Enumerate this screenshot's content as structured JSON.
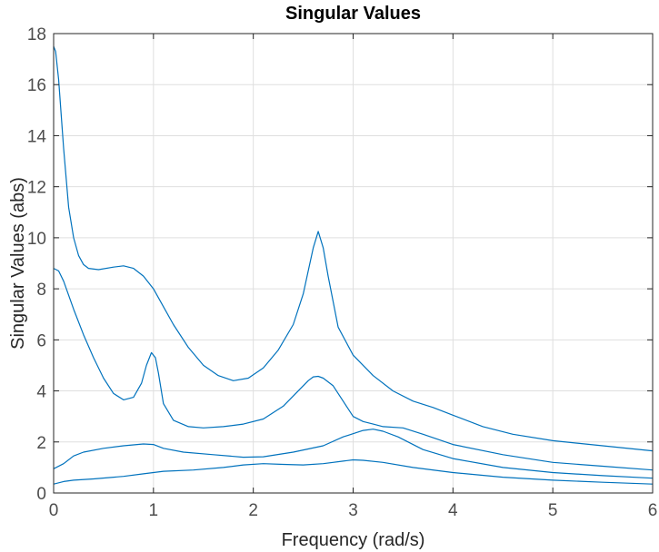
{
  "chart_data": {
    "type": "line",
    "title": "Singular Values",
    "xlabel": "Frequency (rad/s)",
    "ylabel": "Singular Values (abs)",
    "xlim": [
      0,
      6
    ],
    "ylim": [
      0,
      18
    ],
    "xticks": [
      "0",
      "1",
      "2",
      "3",
      "4",
      "5",
      "6"
    ],
    "yticks": [
      "0",
      "2",
      "4",
      "6",
      "8",
      "10",
      "12",
      "14",
      "16",
      "18"
    ],
    "grid": true,
    "line_color": "#0072BD",
    "series": [
      {
        "x": [
          0,
          0.02,
          0.05,
          0.1,
          0.15,
          0.2,
          0.25,
          0.3,
          0.35,
          0.45,
          0.6,
          0.7,
          0.8,
          0.9,
          1.0,
          1.1,
          1.2,
          1.35,
          1.5,
          1.65,
          1.8,
          1.95,
          2.1,
          2.25,
          2.4,
          2.5,
          2.55,
          2.6,
          2.65,
          2.7,
          2.75,
          2.85,
          3.0,
          3.2,
          3.4,
          3.6,
          3.8,
          4.0,
          4.3,
          4.6,
          5.0,
          5.5,
          6.0
        ],
        "y": [
          17.5,
          17.3,
          16.2,
          13.5,
          11.2,
          10.0,
          9.3,
          8.95,
          8.8,
          8.75,
          8.85,
          8.9,
          8.8,
          8.5,
          8.0,
          7.3,
          6.6,
          5.7,
          5.0,
          4.6,
          4.4,
          4.5,
          4.9,
          5.6,
          6.6,
          7.8,
          8.7,
          9.6,
          10.25,
          9.6,
          8.5,
          6.5,
          5.4,
          4.6,
          4.0,
          3.6,
          3.35,
          3.05,
          2.6,
          2.3,
          2.05,
          1.85,
          1.65
        ]
      },
      {
        "x": [
          0,
          0.05,
          0.1,
          0.2,
          0.3,
          0.4,
          0.5,
          0.6,
          0.7,
          0.8,
          0.88,
          0.93,
          0.98,
          1.02,
          1.05,
          1.1,
          1.2,
          1.35,
          1.5,
          1.7,
          1.9,
          2.1,
          2.3,
          2.45,
          2.55,
          2.6,
          2.65,
          2.7,
          2.8,
          2.9,
          3.0,
          3.1,
          3.2,
          3.3,
          3.5,
          3.7,
          4.0,
          4.5,
          5.0,
          5.5,
          6.0
        ],
        "y": [
          8.8,
          8.7,
          8.3,
          7.2,
          6.2,
          5.3,
          4.5,
          3.9,
          3.65,
          3.75,
          4.3,
          5.0,
          5.5,
          5.3,
          4.7,
          3.5,
          2.85,
          2.6,
          2.55,
          2.6,
          2.7,
          2.9,
          3.4,
          4.0,
          4.4,
          4.55,
          4.57,
          4.5,
          4.2,
          3.6,
          3.0,
          2.8,
          2.7,
          2.6,
          2.55,
          2.3,
          1.9,
          1.5,
          1.2,
          1.05,
          0.9
        ]
      },
      {
        "x": [
          0,
          0.1,
          0.2,
          0.3,
          0.5,
          0.7,
          0.9,
          1.0,
          1.1,
          1.3,
          1.6,
          1.9,
          2.1,
          2.4,
          2.7,
          2.9,
          3.1,
          3.2,
          3.3,
          3.45,
          3.7,
          4.0,
          4.5,
          5.0,
          5.5,
          6.0
        ],
        "y": [
          0.95,
          1.15,
          1.45,
          1.6,
          1.75,
          1.85,
          1.92,
          1.9,
          1.75,
          1.6,
          1.5,
          1.4,
          1.42,
          1.6,
          1.85,
          2.2,
          2.45,
          2.5,
          2.42,
          2.2,
          1.7,
          1.35,
          1.0,
          0.8,
          0.68,
          0.58
        ]
      },
      {
        "x": [
          0,
          0.1,
          0.2,
          0.4,
          0.7,
          0.9,
          1.1,
          1.4,
          1.7,
          1.9,
          2.1,
          2.3,
          2.5,
          2.7,
          2.9,
          3.0,
          3.1,
          3.3,
          3.6,
          4.0,
          4.5,
          5.0,
          5.5,
          6.0
        ],
        "y": [
          0.35,
          0.45,
          0.5,
          0.55,
          0.65,
          0.75,
          0.85,
          0.9,
          1.0,
          1.1,
          1.15,
          1.12,
          1.1,
          1.15,
          1.25,
          1.3,
          1.28,
          1.2,
          1.0,
          0.8,
          0.62,
          0.5,
          0.42,
          0.35
        ]
      }
    ]
  }
}
